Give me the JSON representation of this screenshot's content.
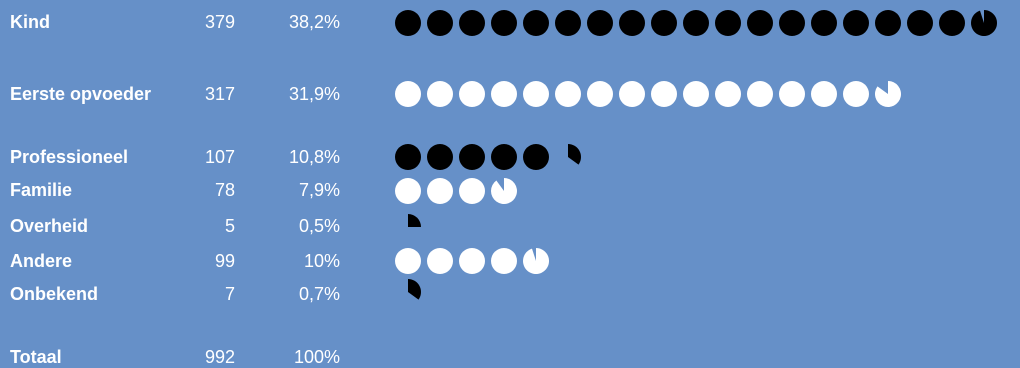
{
  "chart_data": {
    "type": "table",
    "unit_note": "",
    "categories": [
      {
        "label": "Kind",
        "count": "379",
        "percent": "38,2%",
        "value": 379,
        "color": "#000000"
      },
      {
        "label": "Eerste opvoeder",
        "count": "317",
        "percent": "31,9%",
        "value": 317,
        "color": "#ffffff"
      },
      {
        "label": "Professioneel",
        "count": "107",
        "percent": "10,8%",
        "value": 107,
        "color": "#000000"
      },
      {
        "label": "Familie",
        "count": "78",
        "percent": "7,9%",
        "value": 78,
        "color": "#ffffff"
      },
      {
        "label": "Overheid",
        "count": "5",
        "percent": "0,5%",
        "value": 5,
        "color": "#000000"
      },
      {
        "label": "Andere",
        "count": "99",
        "percent": "10%",
        "value": 99,
        "color": "#ffffff"
      },
      {
        "label": "Onbekend",
        "count": "7",
        "percent": "0,7%",
        "value": 7,
        "color": "#000000"
      }
    ],
    "total": {
      "label": "Totaal",
      "count": "992",
      "percent": "100%",
      "value": 992
    }
  },
  "colors": {
    "background": "#6690c8",
    "dark": "#000000",
    "light": "#ffffff",
    "muted_text": "#d8e4f4"
  }
}
